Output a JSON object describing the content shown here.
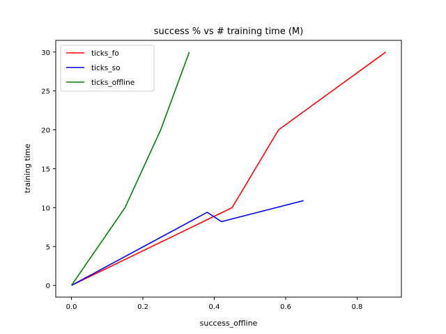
{
  "chart_data": {
    "type": "line",
    "title": "success % vs # training time (M)",
    "xlabel": "success_offline",
    "ylabel": "training time",
    "xlim": [
      -0.044,
      0.924
    ],
    "ylim": [
      -1.5,
      31.5
    ],
    "xticks": [
      0.0,
      0.2,
      0.4,
      0.6,
      0.8
    ],
    "xtick_labels": [
      "0.0",
      "0.2",
      "0.4",
      "0.6",
      "0.8"
    ],
    "yticks": [
      0,
      5,
      10,
      15,
      20,
      25,
      30
    ],
    "ytick_labels": [
      "0",
      "5",
      "10",
      "15",
      "20",
      "25",
      "30"
    ],
    "grid": false,
    "legend_position": "top-left",
    "series": [
      {
        "name": "ticks_fo",
        "color": "#ff0000",
        "x": [
          0.0,
          0.45,
          0.58,
          0.88
        ],
        "y": [
          0,
          10,
          20,
          30
        ]
      },
      {
        "name": "ticks_so",
        "color": "#0000ff",
        "x": [
          0.0,
          0.38,
          0.42,
          0.65
        ],
        "y": [
          0,
          9.4,
          8.2,
          10.9
        ]
      },
      {
        "name": "ticks_offline",
        "color": "#008000",
        "x": [
          0.0,
          0.15,
          0.25,
          0.33
        ],
        "y": [
          0,
          10,
          20,
          30
        ]
      }
    ]
  }
}
